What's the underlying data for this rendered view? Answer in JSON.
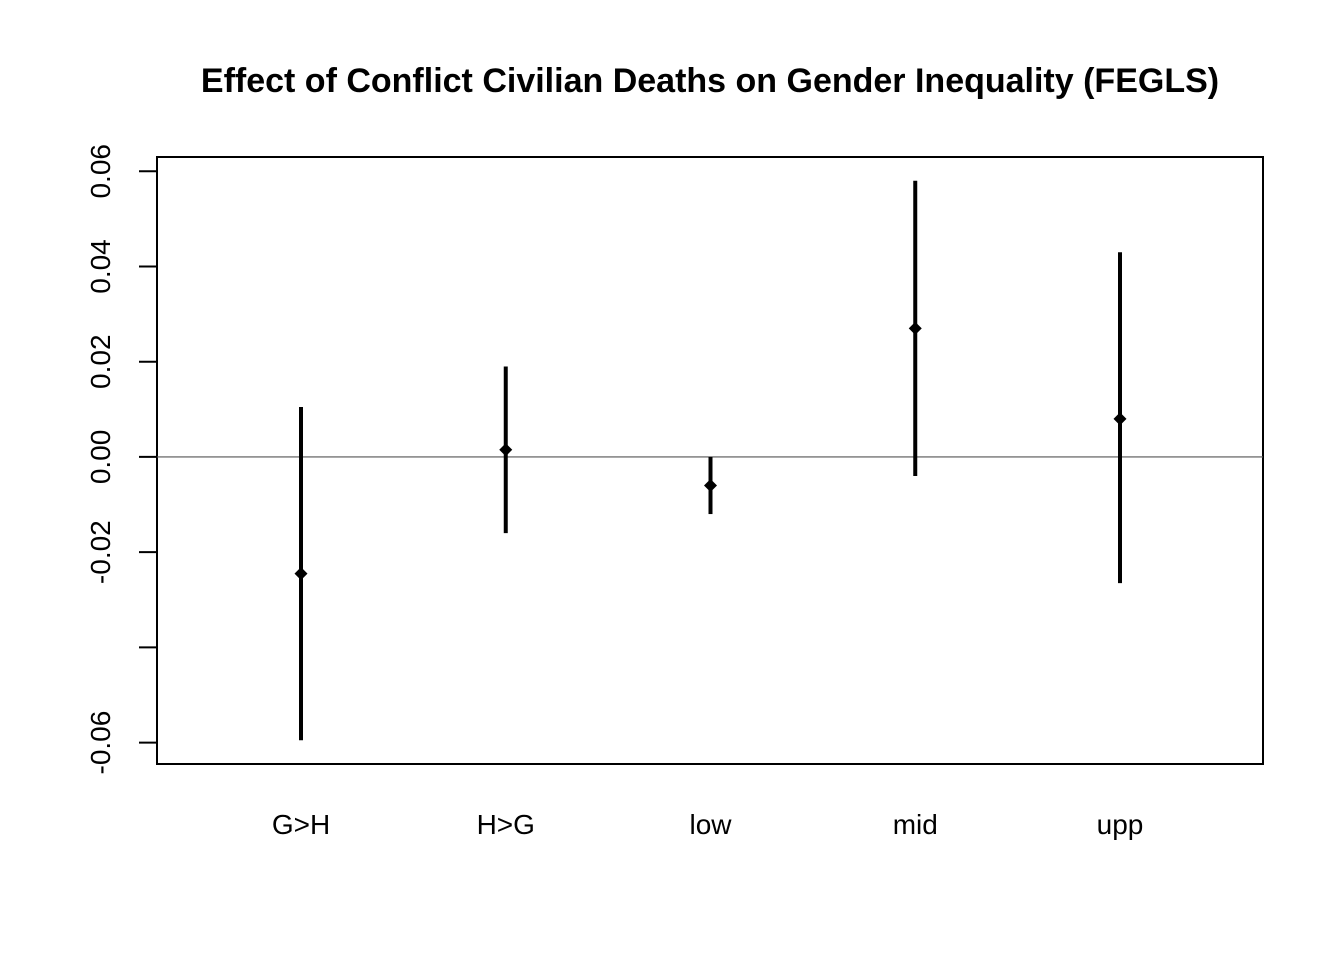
{
  "chart_data": {
    "type": "errorbar",
    "title": "Effect of Conflict Civilian Deaths on Gender Inequality (FEGLS)",
    "xlabel": "",
    "ylabel": "",
    "categories": [
      "G>H",
      "H>G",
      "low",
      "mid",
      "upp"
    ],
    "estimates": [
      -0.0245,
      0.0015,
      -0.006,
      0.027,
      0.008
    ],
    "lower": [
      -0.0595,
      -0.016,
      -0.012,
      -0.004,
      -0.0265
    ],
    "upper": [
      0.0105,
      0.019,
      0.0,
      0.058,
      0.043
    ],
    "ylim": [
      -0.0645,
      0.063
    ],
    "yticks": [
      -0.06,
      -0.04,
      -0.02,
      0.0,
      0.02,
      0.04,
      0.06
    ],
    "ytick_labels": [
      "-0.06",
      "",
      "-0.02",
      "0.00",
      "0.02",
      "0.04",
      "0.06"
    ],
    "reference_line": 0,
    "grid": false,
    "legend": "none",
    "colors": {
      "marks": "#000000",
      "reference_line": "#555555",
      "background": "#ffffff"
    }
  }
}
